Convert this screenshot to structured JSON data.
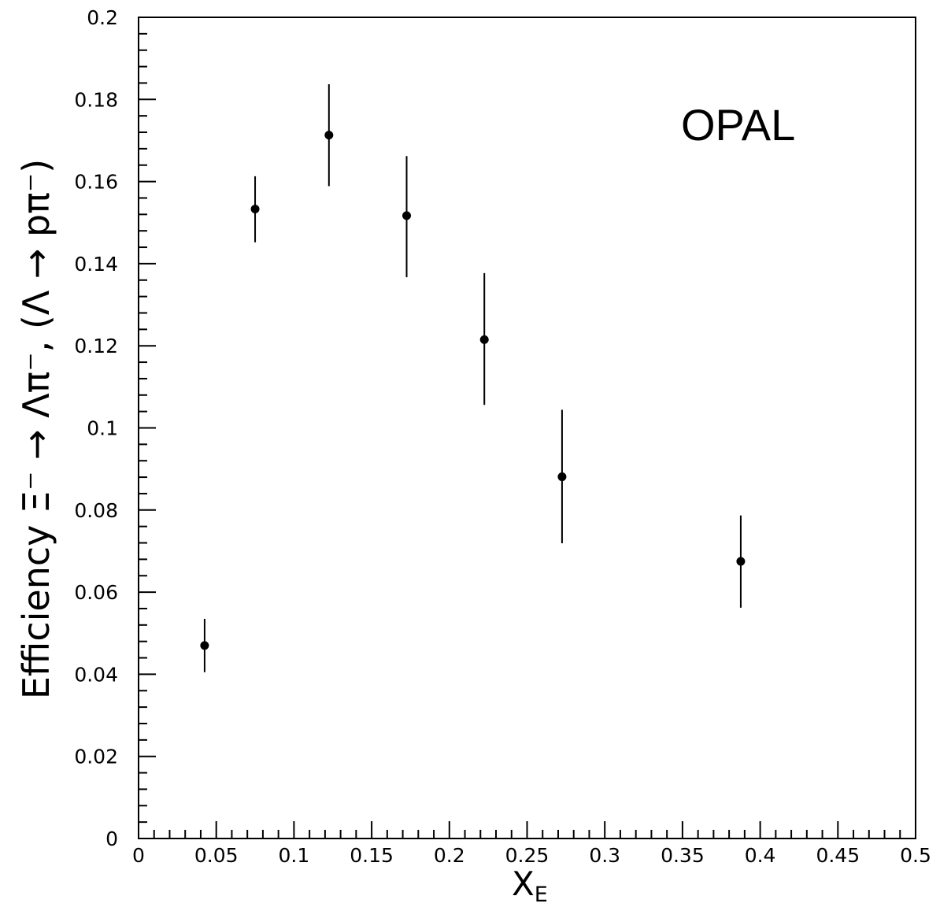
{
  "chart_data": {
    "type": "scatter",
    "title": "",
    "xlabel": "X",
    "xlabel_sub": "E",
    "ylabel": "Efficiency Ξ⁻ → Λπ⁻, (Λ → pπ⁻)",
    "xlim": [
      0,
      0.5
    ],
    "ylim": [
      0,
      0.2
    ],
    "x_ticks": [
      "0",
      "0.05",
      "0.1",
      "0.15",
      "0.2",
      "0.25",
      "0.3",
      "0.35",
      "0.4",
      "0.45",
      "0.5"
    ],
    "y_ticks": [
      "0",
      "0.02",
      "0.04",
      "0.06",
      "0.08",
      "0.1",
      "0.12",
      "0.14",
      "0.16",
      "0.18",
      "0.2"
    ],
    "grid": false,
    "annotation": "OPAL",
    "points": [
      {
        "x": 0.0425,
        "y": 0.047,
        "ylow": 0.0405,
        "yhigh": 0.0535
      },
      {
        "x": 0.075,
        "y": 0.1533,
        "ylow": 0.1452,
        "yhigh": 0.1613
      },
      {
        "x": 0.1225,
        "y": 0.1713,
        "ylow": 0.1589,
        "yhigh": 0.1837
      },
      {
        "x": 0.1725,
        "y": 0.1517,
        "ylow": 0.1367,
        "yhigh": 0.1662
      },
      {
        "x": 0.2225,
        "y": 0.1215,
        "ylow": 0.1056,
        "yhigh": 0.1377
      },
      {
        "x": 0.2725,
        "y": 0.0881,
        "ylow": 0.0719,
        "yhigh": 0.1044
      },
      {
        "x": 0.3875,
        "y": 0.0675,
        "ylow": 0.0562,
        "yhigh": 0.0787
      }
    ]
  }
}
